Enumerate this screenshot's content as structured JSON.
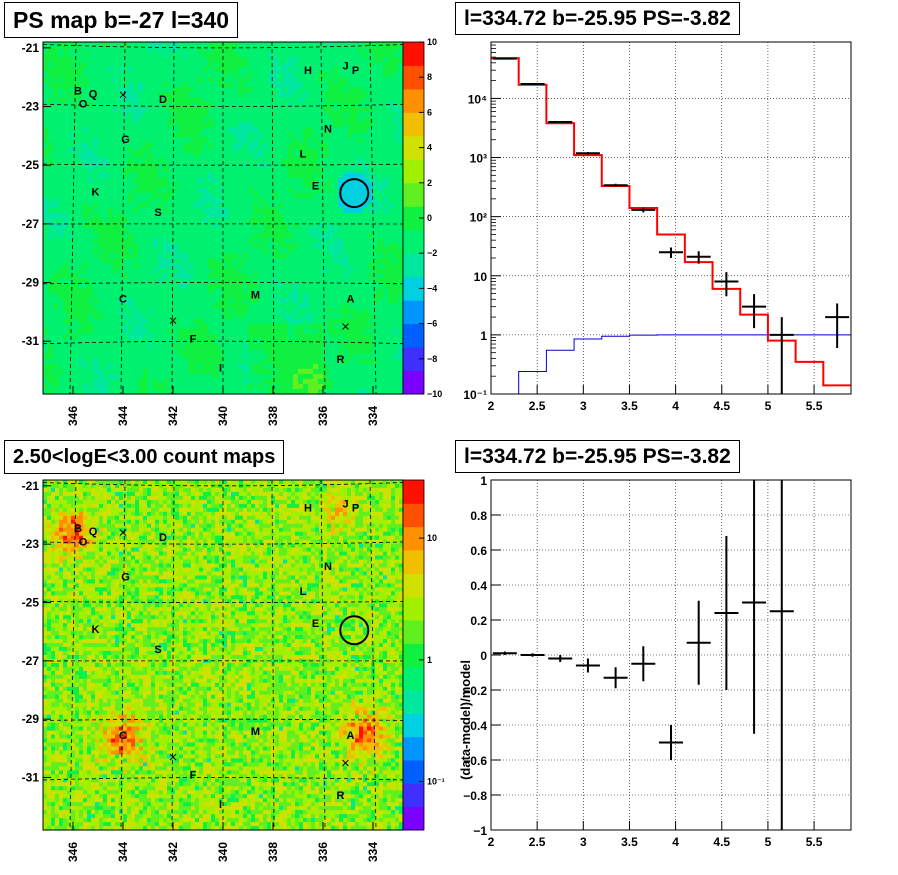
{
  "chart_data": [
    {
      "type": "heatmap",
      "title": "PS map b=-27 l=340",
      "x_ticks": [
        "346",
        "344",
        "342",
        "340",
        "338",
        "336",
        "334"
      ],
      "x_tick_values": [
        346,
        344,
        342,
        340,
        338,
        336,
        334
      ],
      "xlim": [
        347.2,
        332.8
      ],
      "y_ticks": [
        "-21",
        "-23",
        "-25",
        "-27",
        "-29",
        "-31"
      ],
      "y_tick_values": [
        -21,
        -23,
        -25,
        -27,
        -29,
        -31
      ],
      "ylim": [
        -20.8,
        -32.8
      ],
      "colorbar": {
        "ticks": [
          "10",
          "8",
          "6",
          "4",
          "2",
          "0",
          "−2",
          "−4",
          "−6",
          "−8",
          "−10"
        ],
        "tick_values": [
          10,
          8,
          6,
          4,
          2,
          0,
          -2,
          -4,
          -6,
          -8,
          -10
        ],
        "range": [
          -10,
          10
        ],
        "colors": [
          "#7a00ff",
          "#4030ff",
          "#0060ff",
          "#0096ff",
          "#00d0e0",
          "#00e8a0",
          "#00f070",
          "#10f040",
          "#60f020",
          "#a0f000",
          "#d0e000",
          "#f0c000",
          "#ff9000",
          "#ff5000",
          "#ff1000"
        ]
      },
      "sources": [
        {
          "label": "B",
          "l": 345.8,
          "b": -22.45
        },
        {
          "label": "Q",
          "l": 345.2,
          "b": -22.55
        },
        {
          "label": "O",
          "l": 345.6,
          "b": -22.9
        },
        {
          "label": "D",
          "l": 342.4,
          "b": -22.75
        },
        {
          "label": "G",
          "l": 343.9,
          "b": -24.1
        },
        {
          "label": "K",
          "l": 345.1,
          "b": -25.9
        },
        {
          "label": "S",
          "l": 342.6,
          "b": -26.6
        },
        {
          "label": "H",
          "l": 336.6,
          "b": -21.75
        },
        {
          "label": "J",
          "l": 335.1,
          "b": -21.6
        },
        {
          "label": "P",
          "l": 334.7,
          "b": -21.75
        },
        {
          "label": "N",
          "l": 335.8,
          "b": -23.75
        },
        {
          "label": "L",
          "l": 336.8,
          "b": -24.6
        },
        {
          "label": "E",
          "l": 336.3,
          "b": -25.7
        },
        {
          "label": "C",
          "l": 344.0,
          "b": -29.55
        },
        {
          "label": "M",
          "l": 338.7,
          "b": -29.4
        },
        {
          "label": "A",
          "l": 334.9,
          "b": -29.55
        },
        {
          "label": "F",
          "l": 341.2,
          "b": -30.9
        },
        {
          "label": "I",
          "l": 340.1,
          "b": -31.9
        },
        {
          "label": "R",
          "l": 335.3,
          "b": -31.6
        }
      ],
      "crosses": [
        {
          "l": 344.0,
          "b": -22.6
        },
        {
          "l": 342.0,
          "b": -30.3
        },
        {
          "l": 335.1,
          "b": -30.5
        }
      ],
      "circle": {
        "l": 334.75,
        "b": -25.95
      }
    },
    {
      "type": "line",
      "title": "l=334.72 b=-25.95 PS=-3.82",
      "y_scale": "log",
      "xlim": [
        2,
        5.9
      ],
      "ylim": [
        0.1,
        90000
      ],
      "x_ticks": [
        "2",
        "2.5",
        "3",
        "3.5",
        "4",
        "4.5",
        "5",
        "5.5"
      ],
      "x_tick_values": [
        2,
        2.5,
        3,
        3.5,
        4,
        4.5,
        5,
        5.5
      ],
      "y_ticks": [
        "10⁻¹",
        "1",
        "10",
        "10²",
        "10³",
        "10⁴"
      ],
      "y_tick_values": [
        0.1,
        1,
        10,
        100,
        1000,
        10000
      ],
      "bin_edges": [
        2.0,
        2.3,
        2.6,
        2.9,
        3.2,
        3.5,
        3.8,
        4.1,
        4.4,
        4.7,
        5.0,
        5.3,
        5.6,
        5.9
      ],
      "model_values": [
        48000,
        17000,
        3800,
        1100,
        330,
        140,
        50,
        17,
        6,
        2.2,
        0.8,
        0.35,
        0.14
      ],
      "background_values": [
        0.1,
        0.24,
        0.55,
        0.85,
        0.95,
        0.99,
        1.0,
        1.0,
        1.0,
        1.0,
        1.0,
        1.0,
        1.0
      ],
      "data_points": [
        {
          "x": 2.15,
          "y": 47000,
          "err_lo": 500,
          "err_hi": 500
        },
        {
          "x": 2.45,
          "y": 17500,
          "err_lo": 300,
          "err_hi": 300
        },
        {
          "x": 2.75,
          "y": 4000,
          "err_lo": 120,
          "err_hi": 120
        },
        {
          "x": 3.05,
          "y": 1180,
          "err_lo": 60,
          "err_hi": 60
        },
        {
          "x": 3.35,
          "y": 340,
          "err_lo": 20,
          "err_hi": 20
        },
        {
          "x": 3.65,
          "y": 130,
          "err_lo": 12,
          "err_hi": 12
        },
        {
          "x": 3.95,
          "y": 25,
          "err_lo": 5,
          "err_hi": 5
        },
        {
          "x": 4.25,
          "y": 21,
          "err_lo": 5,
          "err_hi": 5
        },
        {
          "x": 4.55,
          "y": 8,
          "err_lo": 3.5,
          "err_hi": 3.5
        },
        {
          "x": 4.85,
          "y": 3,
          "err_lo": 1.7,
          "err_hi": 1.9
        },
        {
          "x": 5.15,
          "y": 1,
          "err_lo": 0.9,
          "err_hi": 1.0
        },
        {
          "x": 5.75,
          "y": 2,
          "err_lo": 1.4,
          "err_hi": 1.4
        }
      ]
    },
    {
      "type": "heatmap",
      "title": "2.50<logE<3.00 count maps",
      "x_ticks": [
        "346",
        "344",
        "342",
        "340",
        "338",
        "336",
        "334"
      ],
      "x_tick_values": [
        346,
        344,
        342,
        340,
        338,
        336,
        334
      ],
      "xlim": [
        347.2,
        332.8
      ],
      "y_ticks": [
        "-21",
        "-23",
        "-25",
        "-27",
        "-29",
        "-31"
      ],
      "y_tick_values": [
        -21,
        -23,
        -25,
        -27,
        -29,
        -31
      ],
      "ylim": [
        -20.8,
        -32.8
      ],
      "colorbar": {
        "ticks": [
          "10",
          "1",
          "10⁻¹"
        ],
        "tick_values": [
          10,
          1,
          0.1
        ],
        "scale": "log",
        "range": [
          0.04,
          30
        ],
        "colors": [
          "#7a00ff",
          "#4030ff",
          "#0060ff",
          "#0096ff",
          "#00d0e0",
          "#00e8a0",
          "#00f070",
          "#10f040",
          "#60f020",
          "#a0f000",
          "#d0e000",
          "#f0c000",
          "#ff9000",
          "#ff5000",
          "#ff1000"
        ]
      },
      "hotspots": [
        {
          "l": 346.0,
          "b": -22.6
        },
        {
          "l": 334.3,
          "b": -29.5
        },
        {
          "l": 344.0,
          "b": -29.6
        },
        {
          "l": 335.3,
          "b": -21.8
        }
      ],
      "sources": [
        {
          "label": "B",
          "l": 345.8,
          "b": -22.45
        },
        {
          "label": "Q",
          "l": 345.2,
          "b": -22.55
        },
        {
          "label": "O",
          "l": 345.6,
          "b": -22.9
        },
        {
          "label": "D",
          "l": 342.4,
          "b": -22.75
        },
        {
          "label": "G",
          "l": 343.9,
          "b": -24.1
        },
        {
          "label": "K",
          "l": 345.1,
          "b": -25.9
        },
        {
          "label": "S",
          "l": 342.6,
          "b": -26.6
        },
        {
          "label": "H",
          "l": 336.6,
          "b": -21.75
        },
        {
          "label": "J",
          "l": 335.1,
          "b": -21.6
        },
        {
          "label": "P",
          "l": 334.7,
          "b": -21.75
        },
        {
          "label": "N",
          "l": 335.8,
          "b": -23.75
        },
        {
          "label": "L",
          "l": 336.8,
          "b": -24.6
        },
        {
          "label": "E",
          "l": 336.3,
          "b": -25.7
        },
        {
          "label": "C",
          "l": 344.0,
          "b": -29.55
        },
        {
          "label": "M",
          "l": 338.7,
          "b": -29.4
        },
        {
          "label": "A",
          "l": 334.9,
          "b": -29.55
        },
        {
          "label": "F",
          "l": 341.2,
          "b": -30.9
        },
        {
          "label": "I",
          "l": 340.1,
          "b": -31.9
        },
        {
          "label": "R",
          "l": 335.3,
          "b": -31.6
        }
      ],
      "crosses": [
        {
          "l": 344.0,
          "b": -22.6
        },
        {
          "l": 342.0,
          "b": -30.3
        },
        {
          "l": 335.1,
          "b": -30.5
        }
      ],
      "circle": {
        "l": 334.75,
        "b": -25.95
      }
    },
    {
      "type": "scatter",
      "title": "l=334.72 b=-25.95 PS=-3.82",
      "ylabel": "(data-model)/model",
      "xlim": [
        2,
        5.9
      ],
      "ylim": [
        -1,
        1
      ],
      "x_ticks": [
        "2",
        "2.5",
        "3",
        "3.5",
        "4",
        "4.5",
        "5",
        "5.5"
      ],
      "x_tick_values": [
        2,
        2.5,
        3,
        3.5,
        4,
        4.5,
        5,
        5.5
      ],
      "y_ticks": [
        "1",
        "0.8",
        "0.6",
        "0.4",
        "0.2",
        "0",
        "−0.2",
        "−0.4",
        "−0.6",
        "−0.8",
        "−1"
      ],
      "y_tick_values": [
        1,
        0.8,
        0.6,
        0.4,
        0.2,
        0,
        -0.2,
        -0.4,
        -0.6,
        -0.8,
        -1
      ],
      "data_points": [
        {
          "x": 2.15,
          "y": 0.01,
          "err": 0.01
        },
        {
          "x": 2.45,
          "y": 0.0,
          "err": 0.01
        },
        {
          "x": 2.75,
          "y": -0.02,
          "err": 0.02
        },
        {
          "x": 3.05,
          "y": -0.06,
          "err": 0.04
        },
        {
          "x": 3.35,
          "y": -0.13,
          "err": 0.06
        },
        {
          "x": 3.65,
          "y": -0.05,
          "err": 0.1
        },
        {
          "x": 3.95,
          "y": -0.5,
          "err": 0.1
        },
        {
          "x": 4.25,
          "y": 0.07,
          "err": 0.24
        },
        {
          "x": 4.55,
          "y": 0.24,
          "err": 0.44
        },
        {
          "x": 4.85,
          "y": 0.3,
          "err": 0.75
        },
        {
          "x": 5.15,
          "y": 0.25,
          "err": 1.25
        }
      ]
    }
  ]
}
